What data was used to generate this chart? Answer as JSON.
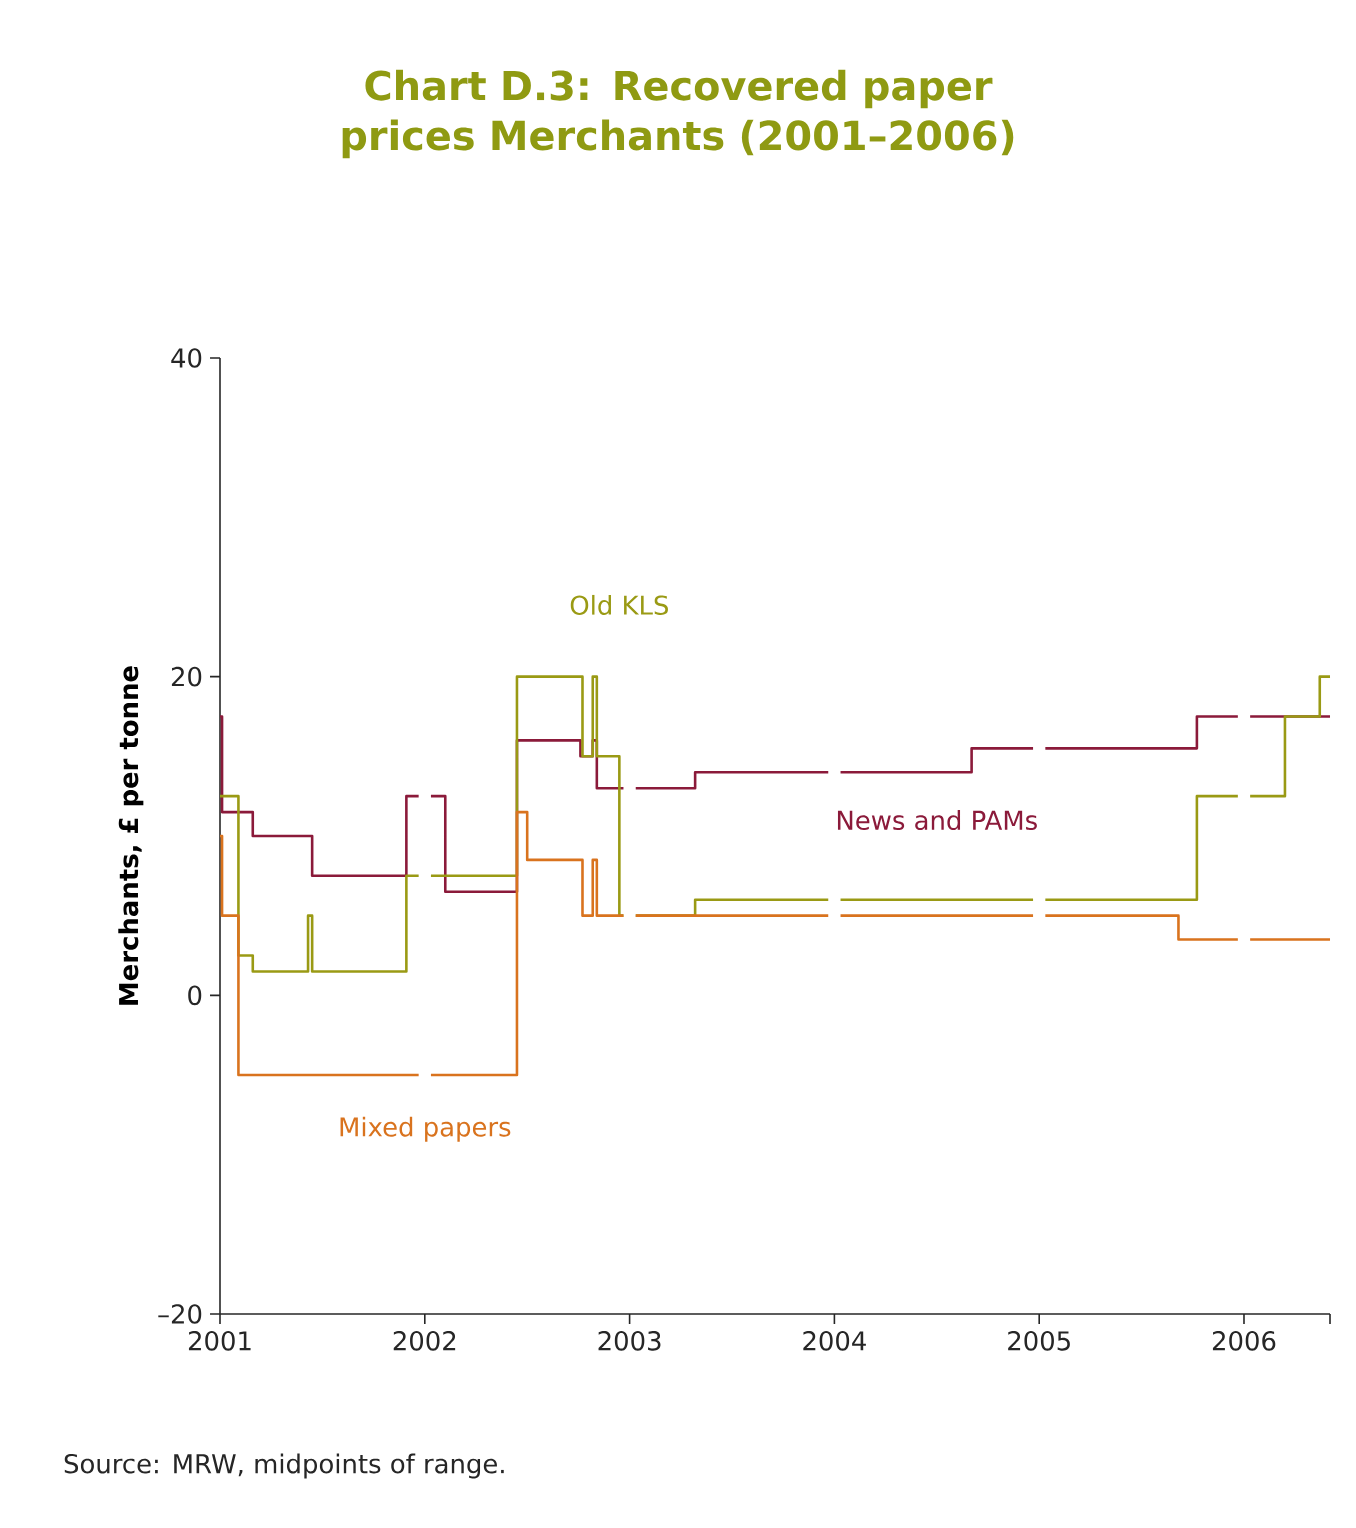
{
  "chart_data": {
    "type": "step",
    "title": "Chart D.3: Recovered paper prices Merchants (2001–2006)",
    "ylabel": "Merchants, £ per tonne",
    "annotations": [
      "Source: MRW, midpoints of range."
    ],
    "xlim": [
      2001,
      2006.42
    ],
    "ylim": [
      -20,
      40
    ],
    "xticks": [
      2001,
      2002,
      2003,
      2004,
      2005,
      2006,
      {
        "value": 2006.42,
        "label": null
      }
    ],
    "yticks": [
      {
        "value": -20,
        "label": "–20"
      },
      0,
      20,
      40
    ],
    "legend": false,
    "grid": false,
    "line_style": "solid",
    "marker": "none",
    "series": [
      {
        "name": "News and PAMs",
        "color": "#8b1a3a",
        "x": [
          2001.0,
          2001.01,
          2001.16,
          2001.45,
          2001.91,
          2001.97,
          2002,
          2002.03,
          2002.1,
          2002.45,
          2002.76,
          2002.82,
          2002.84,
          2002.97,
          2003,
          2003.03,
          2003.32,
          2003.97,
          2004,
          2004.03,
          2004.67,
          2004.97,
          2005,
          2005.03,
          2005.77,
          2005.97,
          2006,
          2006.03,
          2006.42
        ],
        "values": [
          17.5,
          11.5,
          10,
          7.5,
          12.5,
          12.5,
          null,
          12.5,
          6.5,
          16,
          15,
          16,
          13,
          13,
          null,
          13,
          14,
          14,
          null,
          14,
          15.5,
          15.5,
          null,
          15.5,
          17.5,
          17.5,
          null,
          17.5,
          17.5
        ]
      },
      {
        "name": "Old KLS",
        "color": "#9a9a14",
        "x": [
          2001.0,
          2001.09,
          2001.16,
          2001.43,
          2001.45,
          2001.91,
          2001.97,
          2002,
          2002.03,
          2002.45,
          2002.77,
          2002.82,
          2002.84,
          2002.95,
          2002.97,
          2003,
          2003.03,
          2003.32,
          2003.97,
          2004,
          2004.03,
          2004.97,
          2005,
          2005.03,
          2005.77,
          2005.97,
          2006,
          2006.03,
          2006.2,
          2006.37,
          2006.42
        ],
        "values": [
          12.5,
          2.5,
          1.5,
          5,
          1.5,
          7.5,
          7.5,
          null,
          7.5,
          20,
          15,
          20,
          15,
          5,
          5,
          null,
          5,
          6,
          6,
          null,
          6,
          6,
          null,
          6,
          12.5,
          12.5,
          null,
          12.5,
          17.5,
          20,
          20
        ]
      },
      {
        "name": "Mixed papers",
        "color": "#d9731e",
        "x": [
          2001.0,
          2001.01,
          2001.09,
          2001.97,
          2002,
          2002.03,
          2002.45,
          2002.5,
          2002.77,
          2002.82,
          2002.84,
          2002.97,
          2003,
          2003.03,
          2003.97,
          2004,
          2004.03,
          2004.97,
          2005,
          2005.03,
          2005.68,
          2005.97,
          2006,
          2006.03,
          2006.42
        ],
        "values": [
          10,
          5,
          -5,
          -5,
          null,
          -5,
          11.5,
          8.5,
          5,
          8.5,
          5,
          5,
          null,
          5,
          5,
          null,
          5,
          5,
          null,
          5,
          3.5,
          3.5,
          null,
          3.5,
          3.5
        ]
      }
    ]
  }
}
